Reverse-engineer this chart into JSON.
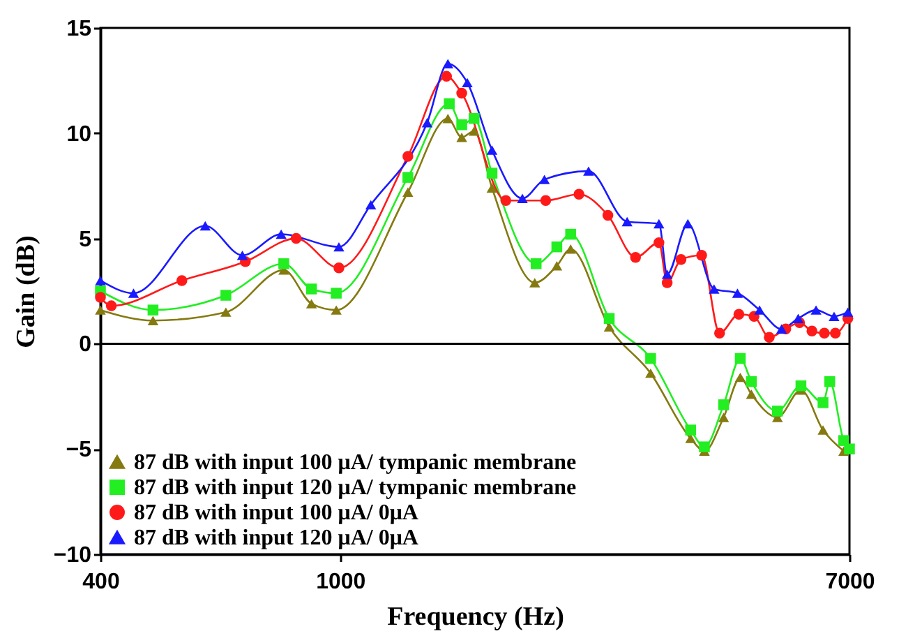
{
  "chart_data": {
    "type": "line",
    "xlabel": "Frequency (Hz)",
    "ylabel": "Gain (dB)",
    "log": "x",
    "xlim": [
      400,
      7000
    ],
    "xticks": [
      400,
      1000,
      7000
    ],
    "ylim": [
      -10,
      15
    ],
    "yticks": [
      -10,
      -5,
      0,
      5,
      10,
      15
    ],
    "grid": false,
    "legend": "bottom left",
    "ref_lines": [
      {
        "axis": "y",
        "value": 0,
        "color": "#000000"
      }
    ],
    "series": [
      {
        "name": "87 dB with input 100 μA/ tympanic membrane",
        "color": "#857a10",
        "marker": "triangle",
        "x": [
          400,
          489,
          646,
          806,
          896,
          985,
          1295,
          1509,
          1591,
          1668,
          1786,
          2103,
          2288,
          2412,
          2795,
          3274,
          3815,
          4021,
          4328,
          4612,
          4812,
          5316,
          5815,
          6327,
          6848
        ],
        "values": [
          1.6,
          1.1,
          1.5,
          3.5,
          1.9,
          1.6,
          7.2,
          10.7,
          9.8,
          10.1,
          7.4,
          2.9,
          3.7,
          4.5,
          0.8,
          -1.4,
          -4.5,
          -5.1,
          -3.5,
          -1.6,
          -2.4,
          -3.5,
          -2.2,
          -4.1,
          -5.1
        ]
      },
      {
        "name": "87 dB with input 120 μA/ tympanic membrane",
        "color": "#22ee22",
        "marker": "square",
        "x": [
          400,
          489,
          646,
          806,
          896,
          985,
          1295,
          1517,
          1591,
          1668,
          1786,
          2114,
          2288,
          2412,
          2795,
          3274,
          3815,
          4021,
          4328,
          4612,
          4812,
          5316,
          5815,
          6327,
          6492,
          6848,
          7000
        ],
        "values": [
          2.5,
          1.6,
          2.3,
          3.8,
          2.6,
          2.4,
          7.9,
          11.4,
          10.4,
          10.7,
          8.1,
          3.8,
          4.6,
          5.2,
          1.2,
          -0.7,
          -4.1,
          -4.9,
          -2.9,
          -0.7,
          -1.8,
          -3.2,
          -2.0,
          -2.8,
          -1.8,
          -4.6,
          -5.0
        ]
      },
      {
        "name": "87 dB with input 100 μA/ 0μA",
        "color": "#ff1a1a",
        "marker": "circle",
        "x": [
          400,
          417,
          546,
          696,
          845,
          995,
          1295,
          1501,
          1591,
          1883,
          2193,
          2490,
          2781,
          3091,
          3380,
          3488,
          3677,
          3979,
          4261,
          4588,
          4861,
          5152,
          5488,
          5785,
          6065,
          6360,
          6633,
          6957
        ],
        "values": [
          2.2,
          1.8,
          3.0,
          3.9,
          5.0,
          3.6,
          8.9,
          12.7,
          11.9,
          6.8,
          6.8,
          7.1,
          6.1,
          4.1,
          4.8,
          2.9,
          4.0,
          4.2,
          0.5,
          1.4,
          1.3,
          0.3,
          0.7,
          1.0,
          0.6,
          0.5,
          0.5,
          1.2
        ]
      },
      {
        "name": "87 dB with input 120 μA/ 0μA",
        "color": "#1a1aff",
        "marker": "triangle",
        "x": [
          400,
          454,
          597,
          688,
          798,
          995,
          1124,
          1394,
          1509,
          1625,
          1786,
          2006,
          2182,
          2583,
          2993,
          3380,
          3488,
          3775,
          4172,
          4563,
          4965,
          5400,
          5755,
          6161,
          6600,
          6957
        ],
        "values": [
          3.0,
          2.4,
          5.6,
          4.2,
          5.2,
          4.6,
          6.6,
          10.5,
          13.3,
          12.4,
          9.2,
          6.9,
          7.8,
          8.2,
          5.8,
          5.7,
          3.3,
          5.7,
          2.6,
          2.4,
          1.6,
          0.7,
          1.2,
          1.6,
          1.3,
          1.5
        ]
      }
    ]
  }
}
